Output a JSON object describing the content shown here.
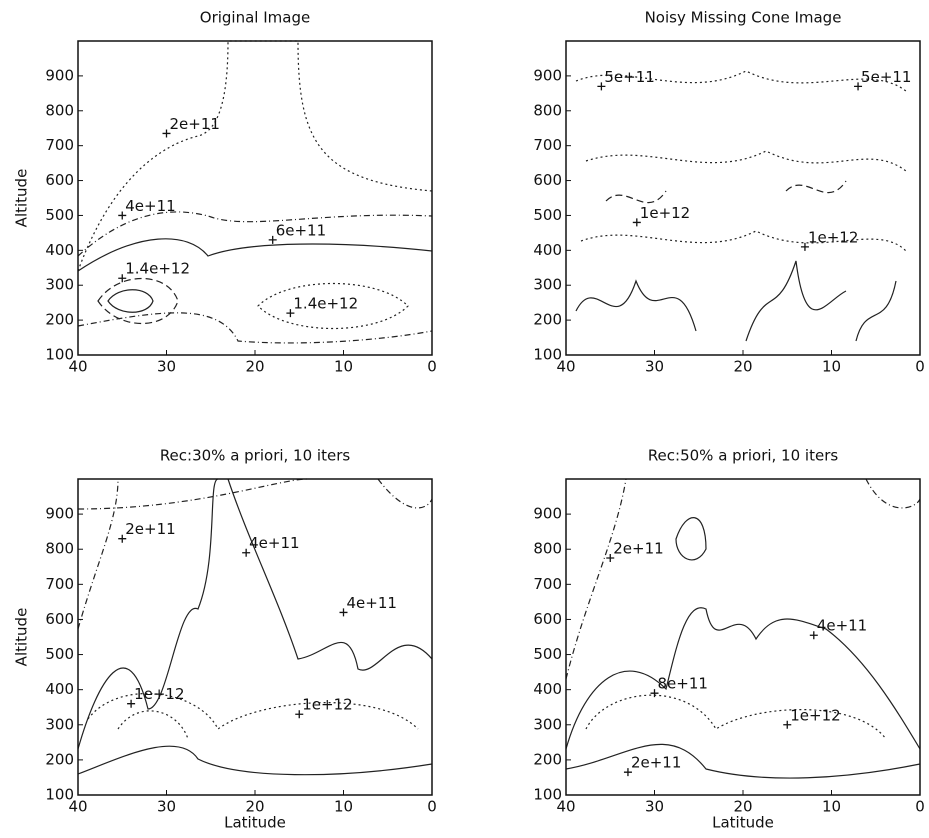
{
  "chart_data": [
    {
      "type": "contour",
      "title": "Original Image",
      "ylabel": "Altitude",
      "xlim": [
        40,
        0
      ],
      "ylim": [
        100,
        1000
      ],
      "xticks": [
        40,
        30,
        20,
        10,
        0
      ],
      "yticks": [
        100,
        200,
        300,
        400,
        500,
        600,
        700,
        800,
        900
      ],
      "annotations": [
        {
          "text": "2e+11",
          "x": 30,
          "y": 735
        },
        {
          "text": "4e+11",
          "x": 35,
          "y": 500
        },
        {
          "text": "6e+11",
          "x": 18,
          "y": 430
        },
        {
          "text": "1.4e+12",
          "x": 35,
          "y": 320
        },
        {
          "text": "1.4e+12",
          "x": 16,
          "y": 220
        }
      ]
    },
    {
      "type": "contour",
      "title": "Noisy Missing Cone Image",
      "xlim": [
        40,
        0
      ],
      "ylim": [
        100,
        1000
      ],
      "xticks": [
        40,
        30,
        20,
        10,
        0
      ],
      "yticks": [
        100,
        200,
        300,
        400,
        500,
        600,
        700,
        800,
        900
      ],
      "annotations": [
        {
          "text": "5e+11",
          "x": 36,
          "y": 870
        },
        {
          "text": "5e+11",
          "x": 7,
          "y": 870
        },
        {
          "text": "1e+12",
          "x": 32,
          "y": 480
        },
        {
          "text": "1e+12",
          "x": 13,
          "y": 410
        }
      ]
    },
    {
      "type": "contour",
      "title": "Rec:30% a priori, 10 iters",
      "ylabel": "Altitude",
      "xlabel": "Latitude",
      "xlim": [
        40,
        0
      ],
      "ylim": [
        100,
        1000
      ],
      "xticks": [
        40,
        30,
        20,
        10,
        0
      ],
      "yticks": [
        100,
        200,
        300,
        400,
        500,
        600,
        700,
        800,
        900
      ],
      "annotations": [
        {
          "text": "2e+11",
          "x": 35,
          "y": 830
        },
        {
          "text": "4e+11",
          "x": 21,
          "y": 790
        },
        {
          "text": "4e+11",
          "x": 10,
          "y": 620
        },
        {
          "text": "1e+12",
          "x": 34,
          "y": 360
        },
        {
          "text": "1e+12",
          "x": 15,
          "y": 330
        }
      ]
    },
    {
      "type": "contour",
      "title": "Rec:50% a priori, 10 iters",
      "xlabel": "Latitude",
      "xlim": [
        40,
        0
      ],
      "ylim": [
        100,
        1000
      ],
      "xticks": [
        40,
        30,
        20,
        10,
        0
      ],
      "yticks": [
        100,
        200,
        300,
        400,
        500,
        600,
        700,
        800,
        900
      ],
      "annotations": [
        {
          "text": "2e+11",
          "x": 35,
          "y": 775
        },
        {
          "text": "4e+11",
          "x": 12,
          "y": 555
        },
        {
          "text": "8e+11",
          "x": 30,
          "y": 390
        },
        {
          "text": "1e+12",
          "x": 15,
          "y": 300
        },
        {
          "text": "2e+11",
          "x": 33,
          "y": 165
        }
      ]
    }
  ]
}
